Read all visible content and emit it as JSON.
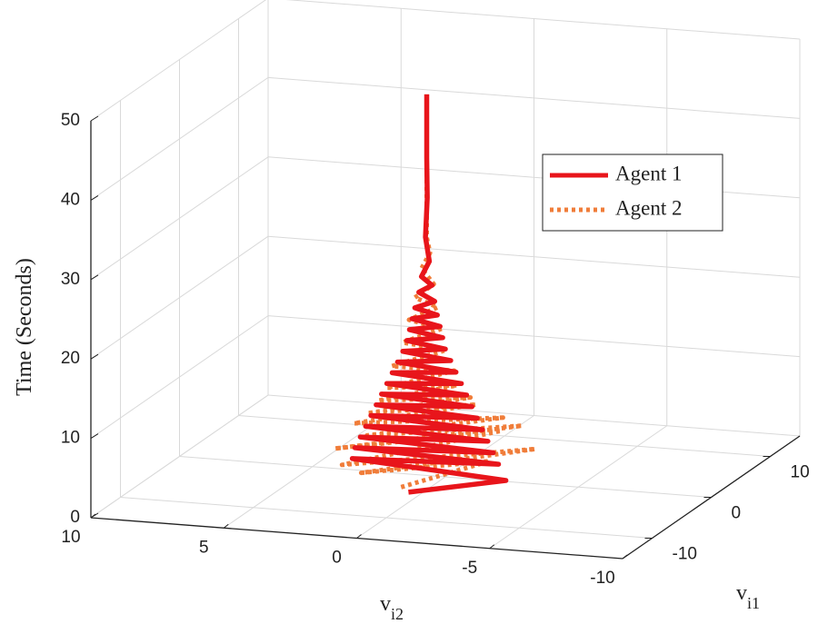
{
  "chart_data": {
    "type": "line3d",
    "xlabel": "v",
    "xlabel_sub": "i1",
    "ylabel": "v",
    "ylabel_sub": "i2",
    "zlabel": "Time (Seconds)",
    "xlim": [
      -15,
      15
    ],
    "xticks": [
      -10,
      0,
      10
    ],
    "ylim": [
      -10,
      10
    ],
    "yticks": [
      -10,
      -5,
      0,
      5,
      10
    ],
    "zlim": [
      0,
      50
    ],
    "zticks": [
      0,
      10,
      20,
      30,
      40,
      50
    ],
    "grid": true,
    "legend": "upper right",
    "series": [
      {
        "name": "Agent 1",
        "color": "#e8151b",
        "style": "solid",
        "z": [
          0,
          0.7,
          1.4,
          2.1,
          2.8,
          3.5,
          4.2,
          4.9,
          5.6,
          6.3,
          7,
          7.7,
          8.4,
          9.1,
          9.8,
          10.5,
          11.2,
          11.9,
          12.6,
          13.3,
          14,
          14.7,
          15.4,
          16.1,
          16.8,
          17.5,
          18.2,
          18.9,
          19.6,
          20.3,
          21,
          22,
          23,
          24,
          25,
          27,
          30,
          35,
          40,
          48
        ],
        "x": [
          -4,
          -1,
          0,
          0,
          0,
          0,
          0,
          0,
          0,
          0,
          0,
          0,
          0,
          0,
          0,
          0,
          0,
          0,
          0,
          0,
          0,
          0,
          0,
          0,
          0,
          0,
          0,
          0,
          0,
          0,
          0,
          0,
          0,
          0,
          0,
          0,
          0,
          0,
          0,
          0
        ],
        "y": [
          0.5,
          -2.5,
          3.5,
          -2,
          3.4,
          -1.8,
          3.2,
          -1.6,
          3,
          -1.4,
          2.8,
          -1.2,
          2.6,
          -1,
          2.4,
          -0.8,
          2.2,
          -0.6,
          2,
          -0.4,
          1.8,
          -0.2,
          1.6,
          0,
          1.45,
          0.1,
          1.35,
          0.2,
          1.25,
          0.3,
          1.15,
          0.4,
          1,
          0.5,
          0.9,
          0.6,
          0.75,
          0.68,
          0.7,
          0.7
        ]
      },
      {
        "name": "Agent 2",
        "color": "#f07d3a",
        "style": "dotted",
        "z": [
          0,
          0.7,
          1.4,
          2.1,
          2.8,
          3.5,
          4.2,
          4.9,
          5.6,
          6.3,
          7,
          7.7,
          8.4,
          9.1,
          9.8,
          10.5,
          11.2,
          12.6,
          14,
          15.4,
          16.8,
          18.2,
          19.6,
          21,
          22.4,
          24,
          26,
          28,
          30,
          35,
          40,
          48
        ],
        "x": [
          -3,
          3,
          -3,
          4,
          -4,
          5,
          -3,
          4,
          -2,
          3,
          -2,
          3,
          -2,
          2,
          -1.5,
          2,
          -1,
          1.5,
          -1,
          1,
          -0.5,
          0.8,
          -0.3,
          0.5,
          -0.2,
          0.3,
          0,
          0.1,
          0,
          0,
          0,
          0
        ],
        "y": [
          1,
          -1,
          2.5,
          -2.5,
          3,
          -1,
          3.5,
          -2,
          2.5,
          -1.5,
          3,
          -0.5,
          2.5,
          -0.5,
          2.2,
          0,
          2,
          0,
          1.8,
          0.2,
          1.5,
          0.3,
          1.3,
          0.4,
          1.1,
          0.5,
          0.9,
          0.6,
          0.7,
          0.7,
          0.7,
          0.7
        ]
      }
    ]
  }
}
